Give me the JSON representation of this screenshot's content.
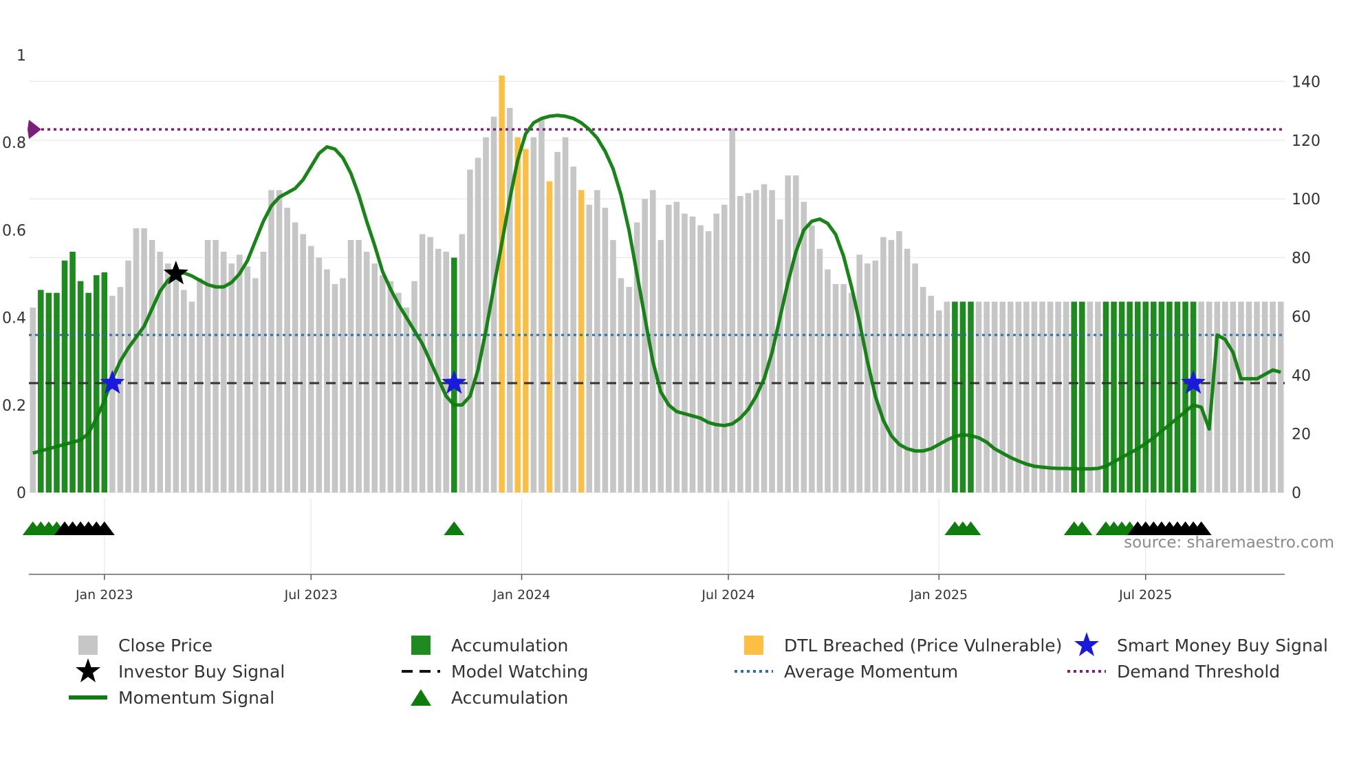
{
  "chart_data": {
    "type": "bar",
    "source": "source: sharemaestro.com",
    "left_axis": {
      "ticks": [
        0,
        0.2,
        0.4,
        0.6,
        0.8,
        1
      ],
      "labels": [
        "0",
        "0.2",
        "0.4",
        "0.6",
        "0.8",
        "1"
      ],
      "range": [
        0,
        1
      ]
    },
    "right_axis": {
      "ticks": [
        0,
        20,
        40,
        60,
        80,
        100,
        120,
        140
      ],
      "labels": [
        "0",
        "20",
        "40",
        "60",
        "80",
        "100",
        "120",
        "140"
      ],
      "range": [
        0,
        149
      ]
    },
    "date_ticks": [
      {
        "label": "Jan 2023",
        "index": 9
      },
      {
        "label": "Jul 2023",
        "index": 35
      },
      {
        "label": "Jan 2024",
        "index": 61.5
      },
      {
        "label": "Jul 2024",
        "index": 87.5
      },
      {
        "label": "Jan 2025",
        "index": 114
      },
      {
        "label": "Jul 2025",
        "index": 140
      }
    ],
    "close_price": [
      63,
      69,
      68,
      68,
      79,
      82,
      72,
      68,
      74,
      75,
      67,
      70,
      79,
      90,
      90,
      86,
      82,
      78,
      73,
      69,
      65,
      73,
      86,
      86,
      82,
      78,
      81,
      77,
      73,
      82,
      103,
      103,
      97,
      92,
      88,
      84,
      80,
      76,
      71,
      73,
      86,
      86,
      82,
      78,
      74,
      72,
      68,
      63,
      72,
      88,
      87,
      83,
      82,
      80,
      88,
      110,
      114,
      121,
      128,
      142,
      131,
      121,
      117,
      121,
      127,
      106,
      116,
      121,
      111,
      103,
      98,
      103,
      97,
      86,
      73,
      70,
      92,
      100,
      103,
      86,
      98,
      99,
      95,
      94,
      91,
      89,
      95,
      98,
      124,
      101,
      102,
      103,
      105,
      103,
      93,
      108,
      108,
      99,
      91,
      83,
      76,
      71,
      71,
      68,
      81,
      78,
      79,
      87,
      86,
      89,
      83,
      78,
      70,
      67,
      62,
      65,
      65,
      65,
      65,
      65,
      65,
      65,
      65,
      65,
      65,
      65,
      65,
      65,
      65,
      65,
      65,
      65,
      65,
      65,
      65,
      65,
      65,
      65,
      65,
      65,
      65,
      65,
      65,
      65,
      65,
      65,
      65,
      65,
      65,
      65,
      65,
      65,
      65,
      65,
      65,
      65,
      65,
      65
    ],
    "accumulation_bars": [
      1,
      2,
      3,
      4,
      5,
      6,
      7,
      8,
      9,
      53,
      116,
      117,
      118,
      131,
      132,
      135,
      136,
      137,
      138,
      139,
      140,
      141,
      142,
      143,
      144,
      145,
      146
    ],
    "dtl_breached_bars": [
      59,
      61,
      62,
      65,
      69
    ],
    "momentum_signal": [
      [
        0,
        0.09
      ],
      [
        2,
        0.1
      ],
      [
        4,
        0.11
      ],
      [
        6,
        0.12
      ],
      [
        7,
        0.135
      ],
      [
        8,
        0.17
      ],
      [
        9,
        0.21
      ],
      [
        10,
        0.26
      ],
      [
        11,
        0.3
      ],
      [
        12,
        0.33
      ],
      [
        13,
        0.355
      ],
      [
        14,
        0.38
      ],
      [
        15,
        0.42
      ],
      [
        16,
        0.46
      ],
      [
        17,
        0.485
      ],
      [
        18,
        0.5
      ],
      [
        19,
        0.502
      ],
      [
        20,
        0.495
      ],
      [
        21,
        0.485
      ],
      [
        22,
        0.475
      ],
      [
        23,
        0.47
      ],
      [
        24,
        0.47
      ],
      [
        25,
        0.48
      ],
      [
        26,
        0.5
      ],
      [
        27,
        0.53
      ],
      [
        28,
        0.575
      ],
      [
        29,
        0.62
      ],
      [
        30,
        0.655
      ],
      [
        31,
        0.675
      ],
      [
        32,
        0.685
      ],
      [
        33,
        0.695
      ],
      [
        34,
        0.715
      ],
      [
        35,
        0.745
      ],
      [
        36,
        0.775
      ],
      [
        37,
        0.79
      ],
      [
        38,
        0.785
      ],
      [
        39,
        0.765
      ],
      [
        40,
        0.73
      ],
      [
        41,
        0.68
      ],
      [
        42,
        0.62
      ],
      [
        43,
        0.565
      ],
      [
        44,
        0.505
      ],
      [
        45,
        0.465
      ],
      [
        46,
        0.43
      ],
      [
        47,
        0.4
      ],
      [
        48,
        0.37
      ],
      [
        49,
        0.34
      ],
      [
        50,
        0.3
      ],
      [
        51,
        0.26
      ],
      [
        52,
        0.22
      ],
      [
        53,
        0.2
      ],
      [
        54,
        0.2
      ],
      [
        55,
        0.22
      ],
      [
        56,
        0.28
      ],
      [
        57,
        0.37
      ],
      [
        58,
        0.47
      ],
      [
        59,
        0.57
      ],
      [
        60,
        0.67
      ],
      [
        61,
        0.76
      ],
      [
        62,
        0.82
      ],
      [
        63,
        0.845
      ],
      [
        64,
        0.855
      ],
      [
        65,
        0.86
      ],
      [
        66,
        0.862
      ],
      [
        67,
        0.86
      ],
      [
        68,
        0.855
      ],
      [
        69,
        0.845
      ],
      [
        70,
        0.83
      ],
      [
        71,
        0.81
      ],
      [
        72,
        0.78
      ],
      [
        73,
        0.74
      ],
      [
        74,
        0.68
      ],
      [
        75,
        0.6
      ],
      [
        76,
        0.5
      ],
      [
        77,
        0.4
      ],
      [
        78,
        0.3
      ],
      [
        79,
        0.23
      ],
      [
        80,
        0.2
      ],
      [
        81,
        0.185
      ],
      [
        82,
        0.18
      ],
      [
        83,
        0.175
      ],
      [
        84,
        0.17
      ],
      [
        85,
        0.16
      ],
      [
        86,
        0.155
      ],
      [
        87,
        0.153
      ],
      [
        88,
        0.157
      ],
      [
        89,
        0.17
      ],
      [
        90,
        0.19
      ],
      [
        91,
        0.22
      ],
      [
        92,
        0.26
      ],
      [
        93,
        0.32
      ],
      [
        94,
        0.4
      ],
      [
        95,
        0.48
      ],
      [
        96,
        0.55
      ],
      [
        97,
        0.6
      ],
      [
        98,
        0.62
      ],
      [
        99,
        0.625
      ],
      [
        100,
        0.615
      ],
      [
        101,
        0.59
      ],
      [
        102,
        0.54
      ],
      [
        103,
        0.47
      ],
      [
        104,
        0.39
      ],
      [
        105,
        0.3
      ],
      [
        106,
        0.22
      ],
      [
        107,
        0.165
      ],
      [
        108,
        0.13
      ],
      [
        109,
        0.11
      ],
      [
        110,
        0.1
      ],
      [
        111,
        0.095
      ],
      [
        112,
        0.095
      ],
      [
        113,
        0.1
      ],
      [
        114,
        0.11
      ],
      [
        115,
        0.12
      ],
      [
        116,
        0.128
      ],
      [
        117,
        0.132
      ],
      [
        118,
        0.13
      ],
      [
        119,
        0.125
      ],
      [
        120,
        0.115
      ],
      [
        121,
        0.1
      ],
      [
        122,
        0.09
      ],
      [
        123,
        0.08
      ],
      [
        124,
        0.072
      ],
      [
        125,
        0.065
      ],
      [
        126,
        0.06
      ],
      [
        127,
        0.058
      ],
      [
        128,
        0.056
      ],
      [
        129,
        0.055
      ],
      [
        130,
        0.055
      ],
      [
        131,
        0.054
      ],
      [
        132,
        0.054
      ],
      [
        133,
        0.054
      ],
      [
        134,
        0.055
      ],
      [
        135,
        0.06
      ],
      [
        136,
        0.07
      ],
      [
        137,
        0.08
      ],
      [
        138,
        0.09
      ],
      [
        139,
        0.1
      ],
      [
        140,
        0.112
      ],
      [
        141,
        0.125
      ],
      [
        142,
        0.14
      ],
      [
        143,
        0.155
      ],
      [
        144,
        0.17
      ],
      [
        145,
        0.185
      ],
      [
        146,
        0.2
      ],
      [
        147,
        0.195
      ],
      [
        148,
        0.145
      ],
      [
        149,
        0.36
      ],
      [
        150,
        0.35
      ],
      [
        151,
        0.32
      ],
      [
        152,
        0.26
      ],
      [
        153,
        0.26
      ],
      [
        154,
        0.26
      ],
      [
        155,
        0.27
      ],
      [
        156,
        0.28
      ],
      [
        157,
        0.275
      ]
    ],
    "average_momentum": 0.36,
    "demand_threshold": 0.83,
    "model_watching": 0.25,
    "investor_buy_signals": [
      {
        "index": 18,
        "value": 0.5
      }
    ],
    "smart_money_buy_signals": [
      {
        "index": 10,
        "value": 0.25
      },
      {
        "index": 53,
        "value": 0.25
      },
      {
        "index": 146,
        "value": 0.25
      }
    ],
    "accumulation_markers_green": [
      0,
      1,
      2,
      3,
      53,
      116,
      117,
      118,
      131,
      132,
      135,
      136,
      137,
      138
    ],
    "accumulation_markers_black": [
      4,
      5,
      6,
      7,
      8,
      9,
      139,
      140,
      141,
      142,
      143,
      144,
      145,
      146,
      147
    ],
    "legend": [
      {
        "key": "close_price",
        "label": "Close Price"
      },
      {
        "key": "accumulation",
        "label": "Accumulation"
      },
      {
        "key": "dtl",
        "label": "DTL Breached (Price Vulnerable)"
      },
      {
        "key": "smart_money",
        "label": "Smart Money Buy Signal"
      },
      {
        "key": "investor",
        "label": "Investor Buy Signal"
      },
      {
        "key": "model_watching",
        "label": "Model Watching"
      },
      {
        "key": "avg_momentum",
        "label": "Average Momentum"
      },
      {
        "key": "demand_threshold",
        "label": "Demand Threshold"
      },
      {
        "key": "momentum",
        "label": "Momentum Signal"
      },
      {
        "key": "accumulation_marker",
        "label": "Accumulation"
      }
    ]
  },
  "colors": {
    "close_price": "#c6c6c6",
    "accumulation": "#1f8a1f",
    "dtl": "#fbbf45",
    "momentum": "#0e7d0e",
    "smart_money": "#1a1adb",
    "investor": "#000000",
    "model_watching": "#333333",
    "avg_momentum": "#2a6fa0",
    "demand_threshold": "#7b1f7a"
  }
}
